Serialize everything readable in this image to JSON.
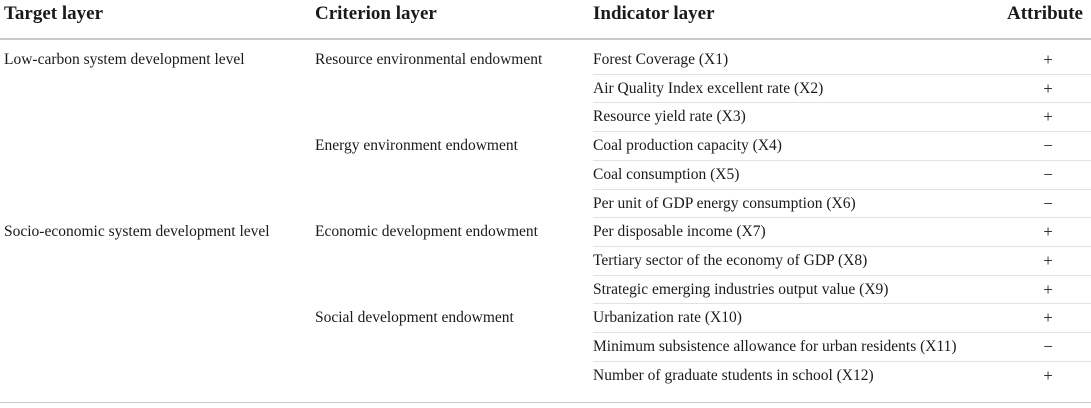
{
  "headers": {
    "target": "Target layer",
    "criterion": "Criterion layer",
    "indicator": "Indicator layer",
    "attribute": "Attribute"
  },
  "rows": [
    {
      "target": "Low-carbon system development level",
      "criterion": "Resource environmental endowment",
      "indicator": "Forest Coverage (X1)",
      "attribute": "+"
    },
    {
      "target": "",
      "criterion": "",
      "indicator": "Air Quality Index excellent rate (X2)",
      "attribute": "+"
    },
    {
      "target": "",
      "criterion": "",
      "indicator": "Resource yield rate (X3)",
      "attribute": "+"
    },
    {
      "target": "",
      "criterion": "Energy environment endowment",
      "indicator": "Coal production capacity (X4)",
      "attribute": "−"
    },
    {
      "target": "",
      "criterion": "",
      "indicator": "Coal consumption (X5)",
      "attribute": "−"
    },
    {
      "target": "",
      "criterion": "",
      "indicator": "Per unit of GDP energy consumption (X6)",
      "attribute": "−"
    },
    {
      "target": "Socio-economic system development level",
      "criterion": "Economic development endowment",
      "indicator": "Per disposable income (X7)",
      "attribute": "+"
    },
    {
      "target": "",
      "criterion": "",
      "indicator": "Tertiary sector of the economy of GDP (X8)",
      "attribute": "+"
    },
    {
      "target": "",
      "criterion": "",
      "indicator": "Strategic emerging industries output value (X9)",
      "attribute": "+"
    },
    {
      "target": "",
      "criterion": "Social development endowment",
      "indicator": "Urbanization rate (X10)",
      "attribute": "+"
    },
    {
      "target": "",
      "criterion": "",
      "indicator": "Minimum subsistence allowance for urban residents (X11)",
      "attribute": "−"
    },
    {
      "target": "",
      "criterion": "",
      "indicator": "Number of graduate students in school (X12)",
      "attribute": "+"
    }
  ]
}
